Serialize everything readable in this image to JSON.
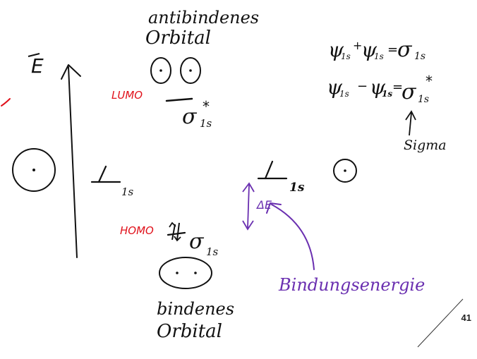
{
  "colors": {
    "ink": "#111111",
    "red": "#e0101a",
    "purple": "#6a2fb0"
  },
  "labels": {
    "antibonding_title_line1": "antibindenes",
    "antibonding_title_line2": "Orbital",
    "lumo": "LUMO",
    "sigma_star": "σ",
    "star": "*",
    "sub_1s": "1s",
    "energy_axis": "E",
    "homo": "HOMO",
    "sigma": "σ",
    "bonding_title_line1": "bindenes",
    "bonding_title_line2": "Orbital",
    "delta_e": "ΔE",
    "bindungsenergie": "Bindungsenergie",
    "sigma_note": "Sigma",
    "eq1_lhs": "ψ",
    "eq1_plus": "+",
    "eq1_eq": "=",
    "eq2_minus": "−",
    "page_number": "41"
  }
}
